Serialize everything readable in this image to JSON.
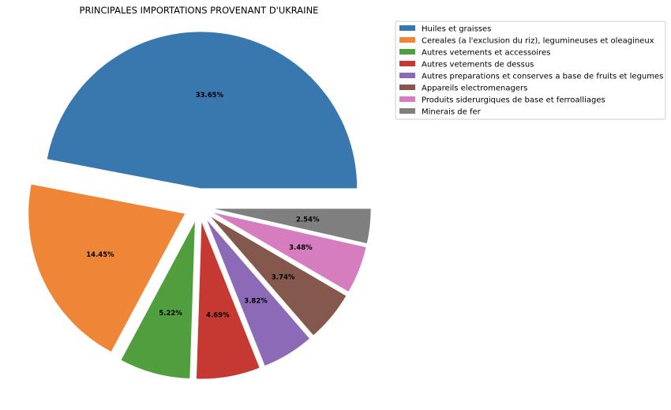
{
  "chart_data": {
    "type": "pie",
    "title": "PRINCIPALES IMPORTATIONS PROVENANT D'UKRAINE",
    "legend_position": "top-right",
    "slices": [
      {
        "label": "Huiles et graisses",
        "percent": 33.65,
        "percent_label": "33.65%",
        "color": "#3977af"
      },
      {
        "label": "Cereales (a l'exclusion du riz), legumineuses et oleagineux",
        "percent": 14.45,
        "percent_label": "14.45%",
        "color": "#ef8536"
      },
      {
        "label": "Autres vetements et accessoires",
        "percent": 5.22,
        "percent_label": "5.22%",
        "color": "#519e3e"
      },
      {
        "label": "Autres vetements de dessus",
        "percent": 4.69,
        "percent_label": "4.69%",
        "color": "#c53932"
      },
      {
        "label": "Autres preparations et conserves a base de fruits et legumes",
        "percent": 3.82,
        "percent_label": "3.82%",
        "color": "#8d6ab8"
      },
      {
        "label": "Appareils electromenagers",
        "percent": 3.74,
        "percent_label": "3.74%",
        "color": "#85584e"
      },
      {
        "label": "Produits siderurgiques de base et ferroalliages",
        "percent": 3.48,
        "percent_label": "3.48%",
        "color": "#d57dbf"
      },
      {
        "label": "Minerais de fer",
        "percent": 2.54,
        "percent_label": "2.54%",
        "color": "#7f7f7f"
      }
    ]
  }
}
